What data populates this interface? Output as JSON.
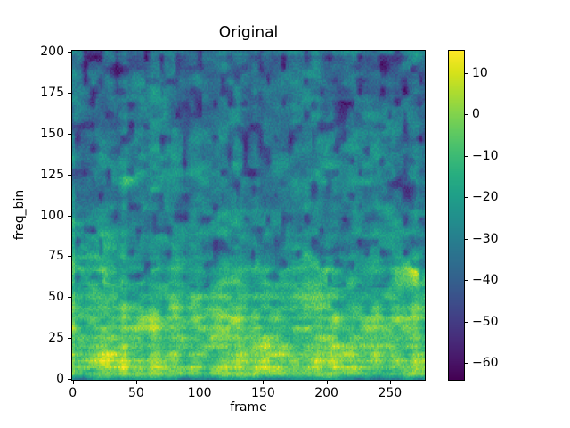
{
  "chart_data": {
    "type": "heatmap",
    "title": "Original",
    "xlabel": "frame",
    "ylabel": "freq_bin",
    "x_ticks": [
      0,
      50,
      100,
      150,
      200,
      250
    ],
    "x_tick_labels": [
      "0",
      "50",
      "100",
      "150",
      "200",
      "250"
    ],
    "y_ticks": [
      0,
      25,
      50,
      75,
      100,
      125,
      150,
      175,
      200
    ],
    "y_tick_labels": [
      "0",
      "25",
      "50",
      "75",
      "100",
      "125",
      "150",
      "175",
      "200"
    ],
    "xlim": [
      -0.5,
      277.5
    ],
    "ylim": [
      -0.5,
      200.5
    ],
    "frames": 278,
    "bins": 200,
    "grid": false,
    "colormap": {
      "name": "viridis",
      "anchors": [
        "#440154",
        "#48186a",
        "#472d7b",
        "#424086",
        "#3b528b",
        "#33638d",
        "#2c728e",
        "#26828e",
        "#21918c",
        "#1fa088",
        "#28ae80",
        "#3fbc73",
        "#5ec962",
        "#84d44b",
        "#addc30",
        "#d8e219",
        "#fde725"
      ]
    },
    "colorbar": {
      "vmin": -64.1,
      "vmax": 15.4,
      "ticks": [
        10,
        0,
        -10,
        -20,
        -30,
        -40,
        -50,
        -60
      ],
      "tick_labels": [
        "10",
        "0",
        "−10",
        "−20",
        "−30",
        "−40",
        "−50",
        "−60"
      ]
    },
    "texture": {
      "seed": 1337,
      "base_profile": [
        [
          0,
          -26
        ],
        [
          3,
          -8
        ],
        [
          8,
          -5
        ],
        [
          16,
          -7
        ],
        [
          24,
          -9
        ],
        [
          34,
          -11
        ],
        [
          45,
          -15
        ],
        [
          60,
          -21
        ],
        [
          80,
          -25
        ],
        [
          100,
          -28
        ],
        [
          130,
          -31
        ],
        [
          160,
          -33
        ],
        [
          200,
          -35
        ]
      ],
      "bands": [
        [
          3,
          9,
          1.2
        ],
        [
          7,
          12,
          1.3
        ],
        [
          11,
          12,
          1.4
        ],
        [
          15,
          11,
          1.5
        ],
        [
          20,
          12,
          1.7
        ],
        [
          25,
          10,
          1.8
        ],
        [
          31,
          9,
          2
        ],
        [
          37,
          10,
          2.2
        ],
        [
          43,
          8,
          2.2
        ],
        [
          50,
          7,
          2.4
        ],
        [
          58,
          6,
          2.4
        ],
        [
          67,
          8,
          2.4
        ],
        [
          74,
          7,
          2.1
        ],
        [
          88,
          5,
          2.5
        ],
        [
          103,
          4.5,
          2.6
        ],
        [
          120,
          4,
          3
        ],
        [
          140,
          3.5,
          3
        ],
        [
          160,
          3,
          3
        ],
        [
          180,
          2.5,
          3
        ]
      ],
      "noise_fine": [
        8,
        5,
        14
      ],
      "noise_coarse": [
        30,
        16,
        12
      ],
      "noise_column": [
        4.5,
        8
      ],
      "speckle": 9,
      "patch_threshold": 0.38,
      "patch_strength": 55,
      "bright_spots": [
        [
          269,
          64,
          26,
          120,
          60
        ],
        [
          44,
          121,
          15,
          50,
          25
        ],
        [
          120,
          150,
          10,
          40,
          20
        ],
        [
          210,
          35,
          8,
          60,
          12
        ],
        [
          96,
          185,
          9,
          30,
          20
        ]
      ]
    }
  }
}
